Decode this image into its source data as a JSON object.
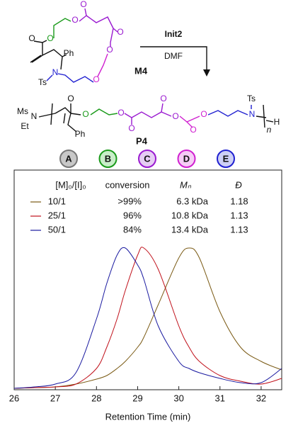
{
  "scheme": {
    "monomer_label": "M4",
    "reagent": "Init2",
    "solvent": "DMF",
    "polymer_label": "P4",
    "segments": [
      "A",
      "B",
      "C",
      "D",
      "E"
    ],
    "atoms": [
      "O",
      "O",
      "O",
      "O",
      "O",
      "O",
      "O",
      "Ph",
      "N",
      "Ts",
      "Ms",
      "N",
      "Et",
      "O",
      "O",
      "O",
      "O",
      "O",
      "O",
      "O",
      "O",
      "Ph",
      "Ts",
      "N",
      "H",
      "n"
    ]
  },
  "chart_data": {
    "type": "line",
    "xlabel": "Retention Time (min)",
    "x": [
      26,
      26.5,
      27,
      27.5,
      28,
      28.25,
      28.5,
      28.7,
      29,
      29.15,
      29.5,
      30,
      30.25,
      30.5,
      31,
      31.5,
      32,
      32.5
    ],
    "xlim": [
      26,
      32.5
    ],
    "xticks": [
      26,
      27,
      28,
      29,
      30,
      31,
      32
    ],
    "ylim": [
      0,
      1.55
    ],
    "legend_columns": [
      "[M]₀/[I]₀",
      "conversion",
      "Mₙ",
      "Đ"
    ],
    "series": [
      {
        "name": "10/1",
        "color": "#7a5a14",
        "conversion": ">99%",
        "mn": "6.3 kDa",
        "dispersity": "1.18",
        "values": [
          0.01,
          0.015,
          0.02,
          0.04,
          0.075,
          0.1,
          0.15,
          0.2,
          0.3,
          0.37,
          0.6,
          0.93,
          1.0,
          0.93,
          0.55,
          0.3,
          0.2,
          0.14
        ]
      },
      {
        "name": "25/1",
        "color": "#c0101a",
        "conversion": "96%",
        "mn": "10.8 kDa",
        "dispersity": "1.13",
        "values": [
          0.01,
          0.015,
          0.02,
          0.04,
          0.15,
          0.3,
          0.5,
          0.7,
          0.95,
          1.0,
          0.85,
          0.45,
          0.3,
          0.2,
          0.1,
          0.06,
          0.04,
          0.08
        ]
      },
      {
        "name": "50/1",
        "color": "#1a1aa0",
        "conversion": "84%",
        "mn": "13.4 kDa",
        "dispersity": "1.13",
        "values": [
          0.01,
          0.02,
          0.04,
          0.12,
          0.5,
          0.75,
          0.95,
          1.0,
          0.88,
          0.78,
          0.45,
          0.2,
          0.15,
          0.12,
          0.08,
          0.05,
          0.05,
          0.15
        ]
      }
    ]
  }
}
